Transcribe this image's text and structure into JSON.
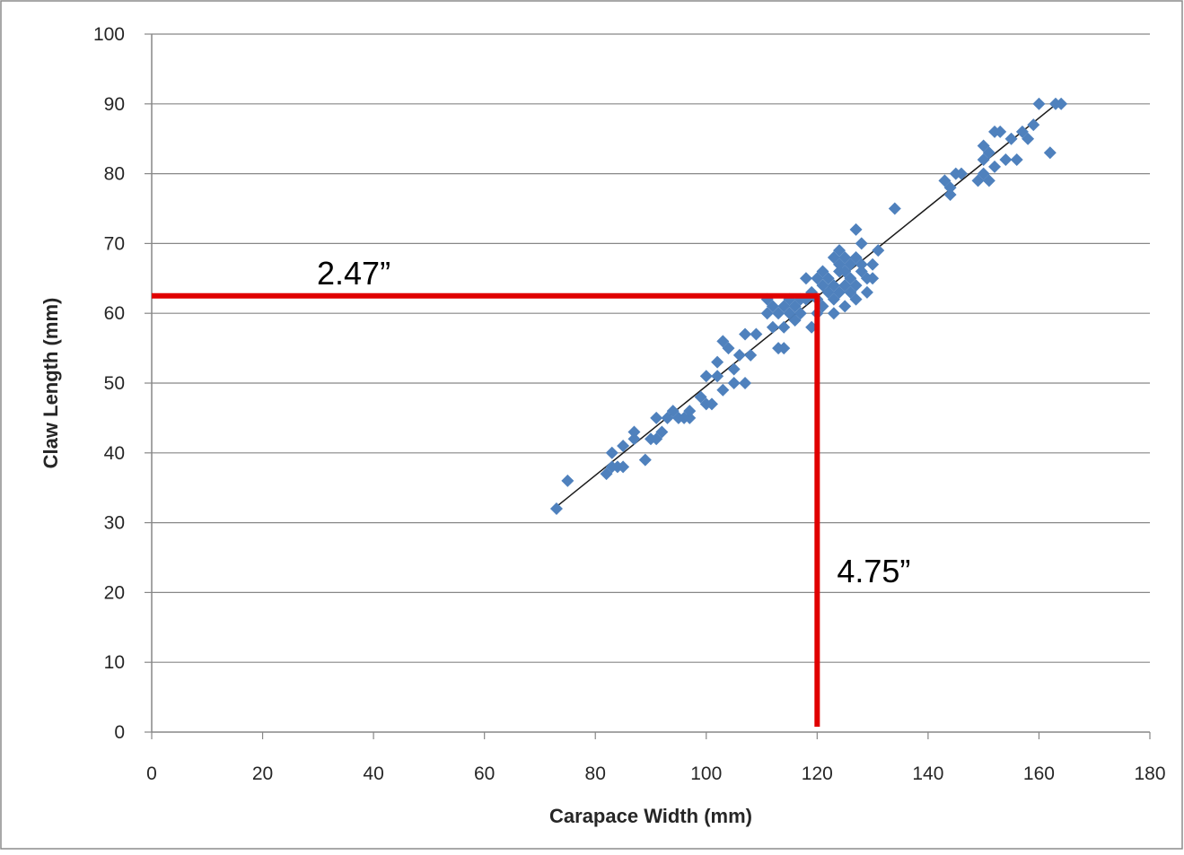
{
  "chart_data": {
    "type": "scatter",
    "xlabel": "Carapace Width (mm)",
    "ylabel": "Claw Length (mm)",
    "xlim": [
      0,
      180
    ],
    "ylim": [
      0,
      100
    ],
    "x_ticks": [
      "0",
      "20",
      "40",
      "60",
      "80",
      "100",
      "120",
      "140",
      "160",
      "180"
    ],
    "y_ticks": [
      "0",
      "10",
      "20",
      "30",
      "40",
      "50",
      "60",
      "70",
      "80",
      "90",
      "100"
    ],
    "grid": "horizontal",
    "legend": "none",
    "marker_color": "#4F81BD",
    "points": [
      [
        73,
        32
      ],
      [
        75,
        36
      ],
      [
        82,
        37
      ],
      [
        83,
        38
      ],
      [
        83,
        40
      ],
      [
        84,
        38
      ],
      [
        85,
        38
      ],
      [
        85,
        41
      ],
      [
        87,
        42
      ],
      [
        87,
        43
      ],
      [
        89,
        39
      ],
      [
        90,
        42
      ],
      [
        91,
        42
      ],
      [
        91,
        45
      ],
      [
        92,
        43
      ],
      [
        93,
        45
      ],
      [
        94,
        46
      ],
      [
        95,
        45
      ],
      [
        96,
        45
      ],
      [
        97,
        45
      ],
      [
        97,
        46
      ],
      [
        99,
        48
      ],
      [
        100,
        51
      ],
      [
        100,
        47
      ],
      [
        101,
        47
      ],
      [
        102,
        53
      ],
      [
        102,
        51
      ],
      [
        103,
        49
      ],
      [
        103,
        56
      ],
      [
        104,
        55
      ],
      [
        105,
        50
      ],
      [
        105,
        52
      ],
      [
        106,
        54
      ],
      [
        107,
        50
      ],
      [
        107,
        57
      ],
      [
        108,
        54
      ],
      [
        109,
        57
      ],
      [
        111,
        60
      ],
      [
        111,
        62
      ],
      [
        112,
        58
      ],
      [
        112,
        61
      ],
      [
        113,
        60
      ],
      [
        113,
        55
      ],
      [
        114,
        58
      ],
      [
        114,
        61
      ],
      [
        114,
        55
      ],
      [
        115,
        62
      ],
      [
        115,
        60
      ],
      [
        116,
        61
      ],
      [
        116,
        59
      ],
      [
        117,
        62
      ],
      [
        117,
        60
      ],
      [
        118,
        62
      ],
      [
        118,
        65
      ],
      [
        119,
        58
      ],
      [
        119,
        63
      ],
      [
        120,
        60
      ],
      [
        120,
        62
      ],
      [
        120,
        65
      ],
      [
        121,
        61
      ],
      [
        121,
        66
      ],
      [
        121,
        64
      ],
      [
        122,
        63
      ],
      [
        122,
        65
      ],
      [
        123,
        62
      ],
      [
        123,
        64
      ],
      [
        123,
        60
      ],
      [
        123,
        68
      ],
      [
        124,
        66
      ],
      [
        124,
        63
      ],
      [
        124,
        67
      ],
      [
        124,
        69
      ],
      [
        125,
        61
      ],
      [
        125,
        64
      ],
      [
        125,
        68
      ],
      [
        125,
        66
      ],
      [
        126,
        65
      ],
      [
        126,
        63
      ],
      [
        126,
        67
      ],
      [
        127,
        62
      ],
      [
        127,
        64
      ],
      [
        127,
        68
      ],
      [
        127,
        72
      ],
      [
        128,
        66
      ],
      [
        128,
        67
      ],
      [
        128,
        70
      ],
      [
        129,
        63
      ],
      [
        129,
        65
      ],
      [
        130,
        67
      ],
      [
        130,
        65
      ],
      [
        131,
        69
      ],
      [
        134,
        75
      ],
      [
        143,
        79
      ],
      [
        144,
        77
      ],
      [
        144,
        78
      ],
      [
        145,
        80
      ],
      [
        146,
        80
      ],
      [
        149,
        79
      ],
      [
        150,
        84
      ],
      [
        150,
        80
      ],
      [
        150,
        82
      ],
      [
        151,
        83
      ],
      [
        151,
        79
      ],
      [
        152,
        81
      ],
      [
        152,
        86
      ],
      [
        153,
        86
      ],
      [
        154,
        82
      ],
      [
        155,
        85
      ],
      [
        156,
        82
      ],
      [
        157,
        86
      ],
      [
        158,
        85
      ],
      [
        159,
        87
      ],
      [
        160,
        90
      ],
      [
        162,
        83
      ],
      [
        163,
        90
      ],
      [
        164,
        90
      ]
    ],
    "trendline": {
      "x": [
        73,
        163
      ],
      "y": [
        32.3,
        89.9
      ]
    },
    "annotations": [
      {
        "text": "2.47”",
        "reference_line": "horizontal",
        "y": 62.5,
        "x_from": 0,
        "x_to": 120
      },
      {
        "text": "4.75”",
        "reference_line": "vertical",
        "x": 120,
        "y_from": 0,
        "y_to": 62.5
      }
    ],
    "annotation_color": "#E00000"
  }
}
